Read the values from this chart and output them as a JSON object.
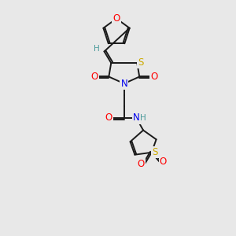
{
  "background_color": "#e8e8e8",
  "bond_color": "#1a1a1a",
  "atom_colors": {
    "O": "#ff0000",
    "N": "#0000ee",
    "S": "#ccaa00",
    "H": "#4a9a9a",
    "C": "#1a1a1a"
  },
  "font_size_atoms": 8.5,
  "font_size_h": 7.5,
  "lw": 1.4
}
